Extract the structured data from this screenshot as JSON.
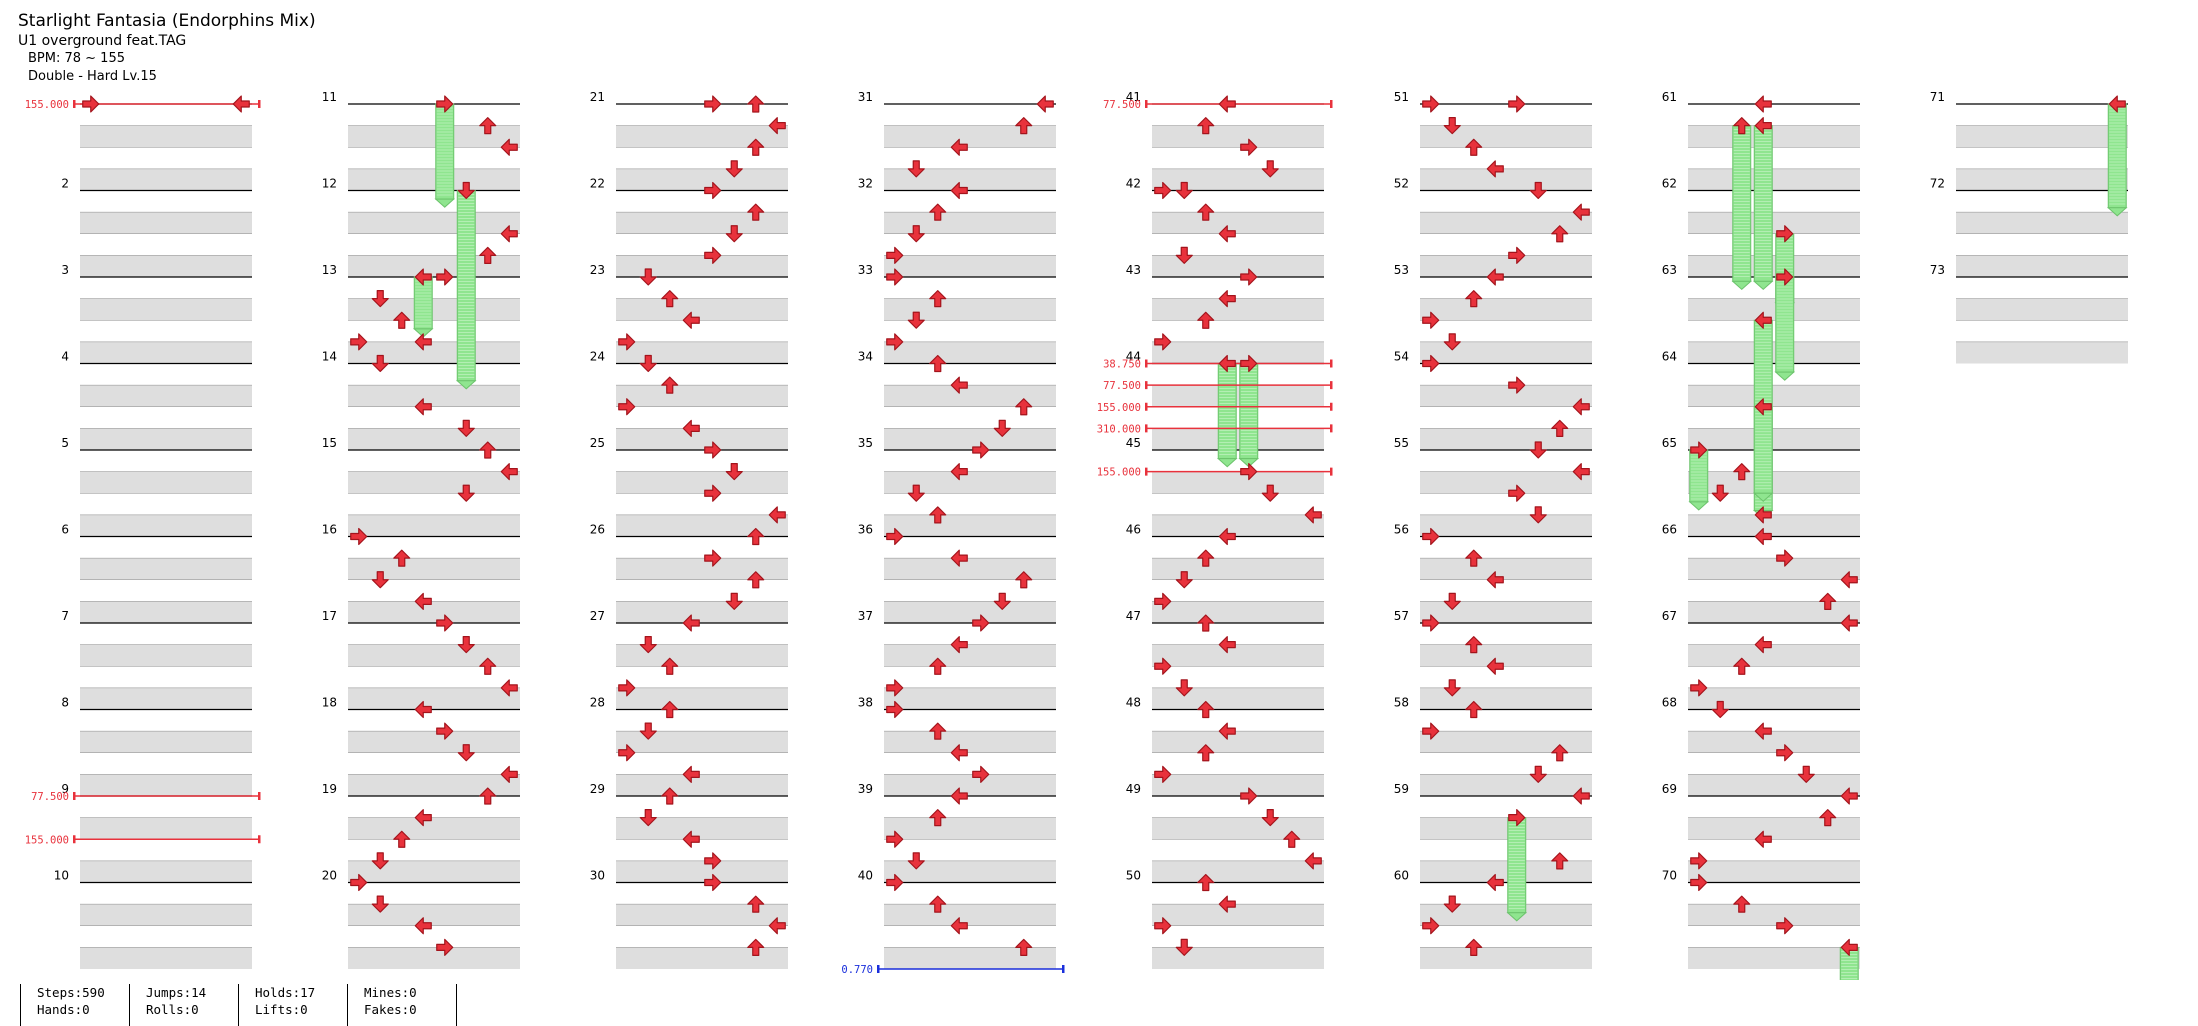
{
  "song": {
    "title": "Starlight Fantasia (Endorphins Mix)",
    "artist": "U1 overground feat.TAG",
    "bpm": "BPM: 78 ~ 155",
    "chart": "Double - Hard  Lv.15"
  },
  "stats": {
    "steps": "Steps:590",
    "hands": "Hands:0",
    "jumps": "Jumps:14",
    "rolls": "Rolls:0",
    "holds": "Holds:17",
    "lifts": "Lifts:0",
    "mines": "Mines:0",
    "fakes": "Fakes:0"
  },
  "measures": [
    "",
    "2",
    "3",
    "4",
    "5",
    "6",
    "7",
    "8",
    "9",
    "10",
    "11",
    "12",
    "13",
    "14",
    "15",
    "16",
    "17",
    "18",
    "19",
    "20",
    "21",
    "22",
    "23",
    "24",
    "25",
    "26",
    "27",
    "28",
    "29",
    "30",
    "31",
    "32",
    "33",
    "34",
    "35",
    "36",
    "37",
    "38",
    "39",
    "40",
    "41",
    "42",
    "43",
    "44",
    "45",
    "46",
    "47",
    "48",
    "49",
    "50",
    "51",
    "52",
    "53",
    "54",
    "55",
    "56",
    "57",
    "58",
    "59",
    "60",
    "61",
    "62",
    "63",
    "64",
    "65",
    "66",
    "67",
    "68",
    "69",
    "70",
    "71",
    "72",
    "73"
  ],
  "bpm_changes": [
    {
      "measure": 1,
      "beat": 0,
      "label": "155.000"
    },
    {
      "measure": 9,
      "beat": 0,
      "label": "77.500"
    },
    {
      "measure": 9,
      "beat": 2,
      "label": "155.000"
    },
    {
      "measure": 41,
      "beat": 0,
      "label": "77.500"
    },
    {
      "measure": 44,
      "beat": 0,
      "label": "38.750"
    },
    {
      "measure": 44,
      "beat": 1,
      "label": "77.500"
    },
    {
      "measure": 44,
      "beat": 2,
      "label": "155.000"
    },
    {
      "measure": 44,
      "beat": 3,
      "label": "310.000"
    },
    {
      "measure": 45,
      "beat": 1,
      "label": "155.000"
    }
  ],
  "speed_changes": [
    {
      "measure": 40,
      "beat": 4,
      "label": "0.770"
    }
  ],
  "colors": {
    "quarter": "#e8323c",
    "eighth": "#3550e8",
    "sixteenth": "#f5de3c",
    "triplet": "#ef8a2e",
    "hold": "#8fe58f",
    "bpm_line": "#e8323c",
    "speed_line": "#1a2fdc",
    "stripe": "#dedede"
  },
  "notes": [
    {
      "m": 1,
      "b": 0,
      "lane": "P2R"
    },
    {
      "m": 1,
      "b": 0,
      "lane": "P1L"
    },
    {
      "m": 11,
      "b": 0,
      "lane": "P2L",
      "hold": 1.1
    },
    {
      "m": 11,
      "b": 1,
      "lane": "P2U"
    },
    {
      "m": 11,
      "b": 2,
      "lane": "P2R"
    },
    {
      "m": 12,
      "b": 0,
      "lane": "P2D",
      "hold": 2.2
    },
    {
      "m": 12,
      "b": 2,
      "lane": "P2R"
    },
    {
      "m": 12,
      "b": 3,
      "lane": "P2U"
    },
    {
      "m": 13,
      "b": 0,
      "lane": "P1R",
      "hold": 0.6
    },
    {
      "m": 13,
      "b": 0,
      "lane": "P2L"
    },
    {
      "m": 13,
      "b": 1,
      "lane": "P1D"
    },
    {
      "m": 13,
      "b": 2,
      "lane": "P1U"
    },
    {
      "m": 13,
      "b": 3,
      "lane": "P1L"
    },
    {
      "m": 13,
      "b": 3,
      "lane": "P1R"
    },
    {
      "m": 14,
      "b": 0,
      "lane": "P1D"
    },
    {
      "m": 14,
      "b": 2,
      "lane": "P1R"
    },
    {
      "m": 14,
      "b": 3,
      "lane": "P2D"
    },
    {
      "m": 15,
      "b": 0,
      "lane": "P2U"
    },
    {
      "m": 15,
      "b": 1,
      "lane": "P2R"
    },
    {
      "m": 15,
      "b": 2,
      "lane": "P2D"
    },
    {
      "m": 16,
      "b": 0,
      "lane": "P1L"
    },
    {
      "m": 16,
      "b": 1,
      "lane": "P1U"
    },
    {
      "m": 16,
      "b": 2,
      "lane": "P1D"
    },
    {
      "m": 16,
      "b": 3,
      "lane": "P1R"
    },
    {
      "m": 17,
      "b": 0,
      "lane": "P2L"
    },
    {
      "m": 17,
      "b": 1,
      "lane": "P2D"
    },
    {
      "m": 17,
      "b": 2,
      "lane": "P2U"
    },
    {
      "m": 17,
      "b": 3,
      "lane": "P2R"
    },
    {
      "m": 18,
      "b": 0,
      "lane": "P1R"
    },
    {
      "m": 18,
      "b": 1,
      "lane": "P2L"
    },
    {
      "m": 18,
      "b": 2,
      "lane": "P2D"
    },
    {
      "m": 18,
      "b": 3,
      "lane": "P2R"
    },
    {
      "m": 19,
      "b": 0,
      "lane": "P2U"
    },
    {
      "m": 19,
      "b": 1,
      "lane": "P1R"
    },
    {
      "m": 19,
      "b": 2,
      "lane": "P1U"
    },
    {
      "m": 19,
      "b": 3,
      "lane": "P1D"
    },
    {
      "m": 20,
      "b": 0,
      "lane": "P1L"
    },
    {
      "m": 20,
      "b": 1,
      "lane": "P1D"
    },
    {
      "m": 20,
      "b": 2,
      "lane": "P1R"
    },
    {
      "m": 20,
      "b": 3,
      "lane": "P2L"
    },
    {
      "m": 21,
      "b": 0,
      "lane": "P2L"
    },
    {
      "m": 21,
      "b": 0,
      "lane": "P2U"
    },
    {
      "m": 21,
      "b": 1,
      "lane": "P2R"
    },
    {
      "m": 21,
      "b": 2,
      "lane": "P2U"
    },
    {
      "m": 21,
      "b": 3,
      "lane": "P2D"
    },
    {
      "m": 22,
      "b": 0,
      "lane": "P2L"
    },
    {
      "m": 22,
      "b": 1,
      "lane": "P2U"
    },
    {
      "m": 22,
      "b": 2,
      "lane": "P2D"
    },
    {
      "m": 22,
      "b": 3,
      "lane": "P2L"
    },
    {
      "m": 23,
      "b": 0,
      "lane": "P1D"
    },
    {
      "m": 23,
      "b": 1,
      "lane": "P1U"
    },
    {
      "m": 23,
      "b": 2,
      "lane": "P1R"
    },
    {
      "m": 23,
      "b": 3,
      "lane": "P1L"
    },
    {
      "m": 24,
      "b": 0,
      "lane": "P1D"
    },
    {
      "m": 24,
      "b": 1,
      "lane": "P1U"
    },
    {
      "m": 24,
      "b": 2,
      "lane": "P1L"
    },
    {
      "m": 24,
      "b": 3,
      "lane": "P1R"
    },
    {
      "m": 25,
      "b": 0,
      "lane": "P2L"
    },
    {
      "m": 25,
      "b": 1,
      "lane": "P2D"
    },
    {
      "m": 25,
      "b": 2,
      "lane": "P2L"
    },
    {
      "m": 25,
      "b": 3,
      "lane": "P2R"
    },
    {
      "m": 26,
      "b": 0,
      "lane": "P2U"
    },
    {
      "m": 26,
      "b": 1,
      "lane": "P2L"
    },
    {
      "m": 26,
      "b": 2,
      "lane": "P2U"
    },
    {
      "m": 26,
      "b": 3,
      "lane": "P2D"
    },
    {
      "m": 27,
      "b": 0,
      "lane": "P1R"
    },
    {
      "m": 27,
      "b": 1,
      "lane": "P1D"
    },
    {
      "m": 27,
      "b": 2,
      "lane": "P1U"
    },
    {
      "m": 27,
      "b": 3,
      "lane": "P1L"
    },
    {
      "m": 28,
      "b": 0,
      "lane": "P1U"
    },
    {
      "m": 28,
      "b": 1,
      "lane": "P1D"
    },
    {
      "m": 28,
      "b": 2,
      "lane": "P1L"
    },
    {
      "m": 28,
      "b": 3,
      "lane": "P1R"
    },
    {
      "m": 29,
      "b": 0,
      "lane": "P1U"
    },
    {
      "m": 29,
      "b": 1,
      "lane": "P1D"
    },
    {
      "m": 29,
      "b": 2,
      "lane": "P1R"
    },
    {
      "m": 29,
      "b": 3,
      "lane": "P2L"
    },
    {
      "m": 30,
      "b": 0,
      "lane": "P2L"
    },
    {
      "m": 30,
      "b": 1,
      "lane": "P2U"
    },
    {
      "m": 30,
      "b": 2,
      "lane": "P2R"
    },
    {
      "m": 30,
      "b": 3,
      "lane": "P2U"
    },
    {
      "m": 31,
      "b": 0,
      "lane": "P2R"
    },
    {
      "m": 31,
      "b": 1,
      "lane": "P2U"
    },
    {
      "m": 31,
      "b": 2,
      "lane": "P1R"
    },
    {
      "m": 31,
      "b": 3,
      "lane": "P1D"
    },
    {
      "m": 32,
      "b": 0,
      "lane": "P1R"
    },
    {
      "m": 32,
      "b": 1,
      "lane": "P1U"
    },
    {
      "m": 32,
      "b": 2,
      "lane": "P1D"
    },
    {
      "m": 32,
      "b": 3,
      "lane": "P1L"
    },
    {
      "m": 33,
      "b": 0,
      "lane": "P1L"
    },
    {
      "m": 33,
      "b": 1,
      "lane": "P1U"
    },
    {
      "m": 33,
      "b": 2,
      "lane": "P1D"
    },
    {
      "m": 33,
      "b": 3,
      "lane": "P1L"
    },
    {
      "m": 34,
      "b": 0,
      "lane": "P1U"
    },
    {
      "m": 34,
      "b": 1,
      "lane": "P1R"
    },
    {
      "m": 34,
      "b": 2,
      "lane": "P2U"
    },
    {
      "m": 34,
      "b": 3,
      "lane": "P2D"
    },
    {
      "m": 35,
      "b": 0,
      "lane": "P2L"
    },
    {
      "m": 35,
      "b": 1,
      "lane": "P1R"
    },
    {
      "m": 35,
      "b": 2,
      "lane": "P1D"
    },
    {
      "m": 35,
      "b": 3,
      "lane": "P1U"
    },
    {
      "m": 36,
      "b": 0,
      "lane": "P1L"
    },
    {
      "m": 36,
      "b": 1,
      "lane": "P1R"
    },
    {
      "m": 36,
      "b": 2,
      "lane": "P2U"
    },
    {
      "m": 36,
      "b": 3,
      "lane": "P2D"
    },
    {
      "m": 37,
      "b": 0,
      "lane": "P2L"
    },
    {
      "m": 37,
      "b": 1,
      "lane": "P1R"
    },
    {
      "m": 37,
      "b": 2,
      "lane": "P1U"
    },
    {
      "m": 37,
      "b": 3,
      "lane": "P1L"
    },
    {
      "m": 38,
      "b": 0,
      "lane": "P1L"
    },
    {
      "m": 38,
      "b": 1,
      "lane": "P1U"
    },
    {
      "m": 38,
      "b": 2,
      "lane": "P1R"
    },
    {
      "m": 38,
      "b": 3,
      "lane": "P2L"
    },
    {
      "m": 39,
      "b": 0,
      "lane": "P1R"
    },
    {
      "m": 39,
      "b": 1,
      "lane": "P1U"
    },
    {
      "m": 39,
      "b": 2,
      "lane": "P1L"
    },
    {
      "m": 39,
      "b": 3,
      "lane": "P1D"
    },
    {
      "m": 40,
      "b": 0,
      "lane": "P1L"
    },
    {
      "m": 40,
      "b": 1,
      "lane": "P1U"
    },
    {
      "m": 40,
      "b": 2,
      "lane": "P1R"
    },
    {
      "m": 40,
      "b": 3,
      "lane": "P2U"
    },
    {
      "m": 41,
      "b": 0,
      "lane": "P1R"
    },
    {
      "m": 41,
      "b": 1,
      "lane": "P1U"
    },
    {
      "m": 41,
      "b": 2,
      "lane": "P2L"
    },
    {
      "m": 41,
      "b": 3,
      "lane": "P2D"
    },
    {
      "m": 42,
      "b": 0,
      "lane": "P1L"
    },
    {
      "m": 42,
      "b": 0,
      "lane": "P1D"
    },
    {
      "m": 42,
      "b": 1,
      "lane": "P1U"
    },
    {
      "m": 42,
      "b": 2,
      "lane": "P1R"
    },
    {
      "m": 42,
      "b": 3,
      "lane": "P1D"
    },
    {
      "m": 43,
      "b": 0,
      "lane": "P2L"
    },
    {
      "m": 43,
      "b": 1,
      "lane": "P1R"
    },
    {
      "m": 43,
      "b": 2,
      "lane": "P1U"
    },
    {
      "m": 43,
      "b": 3,
      "lane": "P1L"
    },
    {
      "m": 44,
      "b": 0,
      "lane": "P1R",
      "hold": 1.1
    },
    {
      "m": 44,
      "b": 0,
      "lane": "P2L",
      "hold": 1.1
    },
    {
      "m": 45,
      "b": 1,
      "lane": "P2L"
    },
    {
      "m": 45,
      "b": 2,
      "lane": "P2D"
    },
    {
      "m": 45,
      "b": 3,
      "lane": "P2R"
    },
    {
      "m": 46,
      "b": 0,
      "lane": "P1R"
    },
    {
      "m": 46,
      "b": 1,
      "lane": "P1U"
    },
    {
      "m": 46,
      "b": 2,
      "lane": "P1D"
    },
    {
      "m": 46,
      "b": 3,
      "lane": "P1L"
    },
    {
      "m": 47,
      "b": 0,
      "lane": "P1U"
    },
    {
      "m": 47,
      "b": 1,
      "lane": "P1R"
    },
    {
      "m": 47,
      "b": 2,
      "lane": "P1L"
    },
    {
      "m": 47,
      "b": 3,
      "lane": "P1D"
    },
    {
      "m": 48,
      "b": 0,
      "lane": "P1U"
    },
    {
      "m": 48,
      "b": 1,
      "lane": "P1R"
    },
    {
      "m": 48,
      "b": 2,
      "lane": "P1U"
    },
    {
      "m": 48,
      "b": 3,
      "lane": "P1L"
    },
    {
      "m": 49,
      "b": 0,
      "lane": "P2L"
    },
    {
      "m": 49,
      "b": 1,
      "lane": "P2D"
    },
    {
      "m": 49,
      "b": 2,
      "lane": "P2U"
    },
    {
      "m": 49,
      "b": 3,
      "lane": "P2R"
    },
    {
      "m": 50,
      "b": 0,
      "lane": "P1U"
    },
    {
      "m": 50,
      "b": 1,
      "lane": "P1R"
    },
    {
      "m": 50,
      "b": 2,
      "lane": "P1L"
    },
    {
      "m": 50,
      "b": 3,
      "lane": "P1D"
    },
    {
      "m": 51,
      "b": 0,
      "lane": "P1L"
    },
    {
      "m": 51,
      "b": 0,
      "lane": "P2L"
    },
    {
      "m": 51,
      "b": 1,
      "lane": "P1D"
    },
    {
      "m": 51,
      "b": 2,
      "lane": "P1U"
    },
    {
      "m": 51,
      "b": 3,
      "lane": "P1R"
    },
    {
      "m": 52,
      "b": 0,
      "lane": "P2D"
    },
    {
      "m": 52,
      "b": 1,
      "lane": "P2R"
    },
    {
      "m": 52,
      "b": 2,
      "lane": "P2U"
    },
    {
      "m": 52,
      "b": 3,
      "lane": "P2L"
    },
    {
      "m": 53,
      "b": 0,
      "lane": "P1R"
    },
    {
      "m": 53,
      "b": 1,
      "lane": "P1U"
    },
    {
      "m": 53,
      "b": 2,
      "lane": "P1L"
    },
    {
      "m": 53,
      "b": 3,
      "lane": "P1D"
    },
    {
      "m": 54,
      "b": 0,
      "lane": "P1L"
    },
    {
      "m": 54,
      "b": 1,
      "lane": "P2L"
    },
    {
      "m": 54,
      "b": 2,
      "lane": "P2R"
    },
    {
      "m": 54,
      "b": 3,
      "lane": "P2U"
    },
    {
      "m": 55,
      "b": 0,
      "lane": "P2D"
    },
    {
      "m": 55,
      "b": 1,
      "lane": "P2R"
    },
    {
      "m": 55,
      "b": 2,
      "lane": "P2L"
    },
    {
      "m": 55,
      "b": 3,
      "lane": "P2D"
    },
    {
      "m": 56,
      "b": 0,
      "lane": "P1L"
    },
    {
      "m": 56,
      "b": 1,
      "lane": "P1U"
    },
    {
      "m": 56,
      "b": 2,
      "lane": "P1R"
    },
    {
      "m": 56,
      "b": 3,
      "lane": "P1D"
    },
    {
      "m": 57,
      "b": 0,
      "lane": "P1L"
    },
    {
      "m": 57,
      "b": 1,
      "lane": "P1U"
    },
    {
      "m": 57,
      "b": 2,
      "lane": "P1R"
    },
    {
      "m": 57,
      "b": 3,
      "lane": "P1D"
    },
    {
      "m": 58,
      "b": 0,
      "lane": "P1U"
    },
    {
      "m": 58,
      "b": 1,
      "lane": "P1L"
    },
    {
      "m": 58,
      "b": 2,
      "lane": "P2U"
    },
    {
      "m": 58,
      "b": 3,
      "lane": "P2D"
    },
    {
      "m": 59,
      "b": 0,
      "lane": "P2R"
    },
    {
      "m": 59,
      "b": 1,
      "lane": "P2L",
      "hold": 1.1
    },
    {
      "m": 59,
      "b": 3,
      "lane": "P2U"
    },
    {
      "m": 60,
      "b": 0,
      "lane": "P1R"
    },
    {
      "m": 60,
      "b": 1,
      "lane": "P1D"
    },
    {
      "m": 60,
      "b": 2,
      "lane": "P1L"
    },
    {
      "m": 60,
      "b": 3,
      "lane": "P1U"
    },
    {
      "m": 61,
      "b": 0,
      "lane": "P1R"
    },
    {
      "m": 61,
      "b": 1,
      "lane": "P1R",
      "hold": 1.8
    },
    {
      "m": 61,
      "b": 1,
      "lane": "P1U",
      "hold": 1.8
    },
    {
      "m": 62,
      "b": 2,
      "lane": "P2L",
      "hold": 0.8
    },
    {
      "m": 63,
      "b": 0,
      "lane": "P2L",
      "hold": 1.1
    },
    {
      "m": 63,
      "b": 2,
      "lane": "P1R",
      "hold": 2.2
    },
    {
      "m": 64,
      "b": 2,
      "lane": "P1R",
      "hold": 1.0
    },
    {
      "m": 65,
      "b": 0,
      "lane": "P1L",
      "hold": 0.6
    },
    {
      "m": 65,
      "b": 1,
      "lane": "P1U"
    },
    {
      "m": 65,
      "b": 2,
      "lane": "P1D"
    },
    {
      "m": 65,
      "b": 3,
      "lane": "P1R"
    },
    {
      "m": 66,
      "b": 0,
      "lane": "P1R"
    },
    {
      "m": 66,
      "b": 1,
      "lane": "P2L"
    },
    {
      "m": 66,
      "b": 2,
      "lane": "P2R"
    },
    {
      "m": 66,
      "b": 3,
      "lane": "P2U"
    },
    {
      "m": 67,
      "b": 0,
      "lane": "P2R"
    },
    {
      "m": 67,
      "b": 1,
      "lane": "P1R"
    },
    {
      "m": 67,
      "b": 2,
      "lane": "P1U"
    },
    {
      "m": 67,
      "b": 3,
      "lane": "P1L"
    },
    {
      "m": 68,
      "b": 0,
      "lane": "P1D"
    },
    {
      "m": 68,
      "b": 1,
      "lane": "P1R"
    },
    {
      "m": 68,
      "b": 2,
      "lane": "P2L"
    },
    {
      "m": 68,
      "b": 3,
      "lane": "P2D"
    },
    {
      "m": 69,
      "b": 0,
      "lane": "P2R"
    },
    {
      "m": 69,
      "b": 1,
      "lane": "P2U"
    },
    {
      "m": 69,
      "b": 2,
      "lane": "P1R"
    },
    {
      "m": 69,
      "b": 3,
      "lane": "P1L"
    },
    {
      "m": 70,
      "b": 0,
      "lane": "P1L"
    },
    {
      "m": 70,
      "b": 1,
      "lane": "P1U"
    },
    {
      "m": 70,
      "b": 2,
      "lane": "P2L"
    },
    {
      "m": 70,
      "b": 3,
      "lane": "P2R",
      "hold": 1.2
    },
    {
      "m": 71,
      "b": 0,
      "lane": "P2R",
      "hold": 1.2
    }
  ]
}
